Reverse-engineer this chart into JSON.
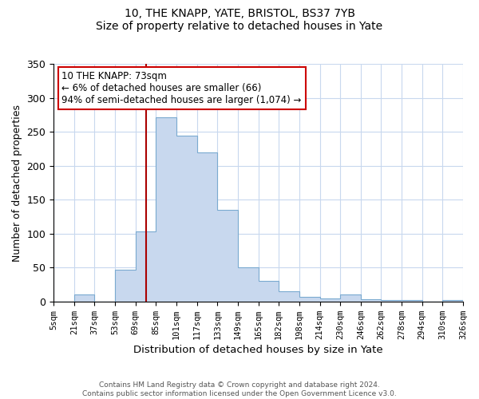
{
  "title": "10, THE KNAPP, YATE, BRISTOL, BS37 7YB",
  "subtitle": "Size of property relative to detached houses in Yate",
  "xlabel": "Distribution of detached houses by size in Yate",
  "ylabel": "Number of detached properties",
  "bin_labels": [
    "5sqm",
    "21sqm",
    "37sqm",
    "53sqm",
    "69sqm",
    "85sqm",
    "101sqm",
    "117sqm",
    "133sqm",
    "149sqm",
    "165sqm",
    "182sqm",
    "198sqm",
    "214sqm",
    "230sqm",
    "246sqm",
    "262sqm",
    "278sqm",
    "294sqm",
    "310sqm",
    "326sqm"
  ],
  "bar_values": [
    0,
    10,
    0,
    47,
    103,
    272,
    244,
    220,
    135,
    50,
    30,
    15,
    7,
    5,
    10,
    3,
    2,
    2,
    0,
    2
  ],
  "bar_color": "#c8d8ee",
  "bar_edge_color": "#7aaad0",
  "vline_position": 4.5,
  "vline_color": "#aa0000",
  "ylim": [
    0,
    350
  ],
  "yticks": [
    0,
    50,
    100,
    150,
    200,
    250,
    300,
    350
  ],
  "annotation_text": "10 THE KNAPP: 73sqm\n← 6% of detached houses are smaller (66)\n94% of semi-detached houses are larger (1,074) →",
  "annotation_box_color": "#ffffff",
  "annotation_box_edge": "#cc0000",
  "grid_color": "#c8d8ee",
  "footer_line1": "Contains HM Land Registry data © Crown copyright and database right 2024.",
  "footer_line2": "Contains public sector information licensed under the Open Government Licence v3.0."
}
